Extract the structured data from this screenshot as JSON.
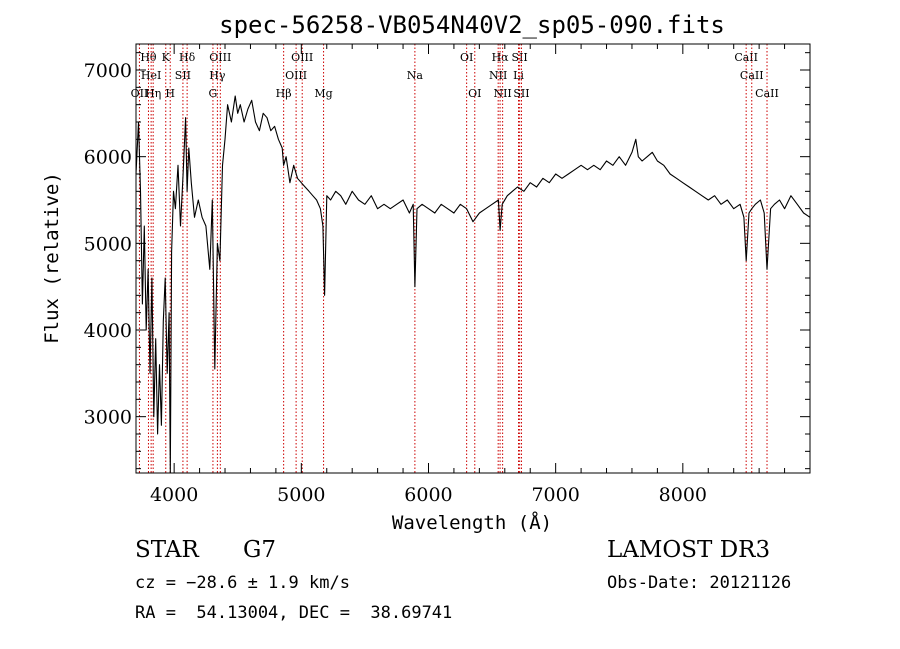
{
  "chart_data": {
    "type": "line",
    "title": "spec-56258-VB054N40V2_sp05-090.fits",
    "xlabel": "Wavelength (Å)",
    "ylabel": "Flux (relative)",
    "xlim": [
      3700,
      9000
    ],
    "ylim": [
      2350,
      7300
    ],
    "x_ticks": [
      4000,
      5000,
      6000,
      7000,
      8000
    ],
    "y_ticks": [
      3000,
      4000,
      5000,
      6000,
      7000
    ],
    "line_color": "#000000",
    "marker_color": "#cc0000",
    "series": [
      {
        "x": [
          3700,
          3720,
          3735,
          3750,
          3765,
          3780,
          3795,
          3810,
          3825,
          3840,
          3855,
          3870,
          3885,
          3900,
          3915,
          3930,
          3945,
          3960,
          3970,
          3980,
          3995,
          4010,
          4030,
          4050,
          4070,
          4090,
          4102,
          4115,
          4135,
          4160,
          4190,
          4220,
          4250,
          4280,
          4300,
          4320,
          4340,
          4360,
          4380,
          4400,
          4420,
          4450,
          4480,
          4500,
          4520,
          4550,
          4580,
          4610,
          4640,
          4670,
          4700,
          4730,
          4760,
          4790,
          4820,
          4850,
          4861,
          4880,
          4910,
          4940,
          4970,
          5000,
          5030,
          5060,
          5090,
          5120,
          5150,
          5170,
          5183,
          5200,
          5230,
          5270,
          5310,
          5350,
          5400,
          5450,
          5500,
          5550,
          5600,
          5650,
          5700,
          5750,
          5800,
          5850,
          5880,
          5893,
          5910,
          5950,
          6000,
          6050,
          6100,
          6150,
          6200,
          6250,
          6300,
          6350,
          6400,
          6450,
          6500,
          6550,
          6563,
          6580,
          6620,
          6660,
          6700,
          6750,
          6800,
          6850,
          6900,
          6950,
          7000,
          7050,
          7100,
          7150,
          7200,
          7250,
          7300,
          7350,
          7400,
          7450,
          7500,
          7550,
          7600,
          7630,
          7650,
          7680,
          7720,
          7760,
          7800,
          7850,
          7900,
          7950,
          8000,
          8050,
          8100,
          8150,
          8200,
          8250,
          8300,
          8350,
          8400,
          8450,
          8480,
          8498,
          8520,
          8542,
          8570,
          8610,
          8640,
          8662,
          8690,
          8720,
          8760,
          8800,
          8850,
          8900,
          8950,
          9000
        ],
        "y": [
          5800,
          6400,
          5600,
          4300,
          5200,
          4000,
          4700,
          3500,
          4600,
          3000,
          3900,
          2800,
          3600,
          2900,
          4100,
          4600,
          3500,
          4200,
          2350,
          4900,
          5600,
          5400,
          5900,
          5200,
          5800,
          6450,
          5600,
          6100,
          5700,
          5300,
          5500,
          5300,
          5200,
          4700,
          5500,
          3550,
          5000,
          4800,
          5900,
          6200,
          6600,
          6400,
          6700,
          6500,
          6600,
          6400,
          6550,
          6650,
          6400,
          6300,
          6500,
          6450,
          6300,
          6350,
          6200,
          6100,
          5900,
          6000,
          5700,
          5900,
          5750,
          5700,
          5650,
          5600,
          5550,
          5500,
          5400,
          5200,
          4400,
          5550,
          5500,
          5600,
          5550,
          5450,
          5600,
          5500,
          5450,
          5550,
          5400,
          5450,
          5400,
          5450,
          5500,
          5350,
          5450,
          4500,
          5400,
          5450,
          5400,
          5350,
          5450,
          5400,
          5350,
          5450,
          5400,
          5250,
          5350,
          5400,
          5450,
          5500,
          5150,
          5450,
          5550,
          5600,
          5650,
          5600,
          5700,
          5650,
          5750,
          5700,
          5800,
          5750,
          5800,
          5850,
          5900,
          5850,
          5900,
          5850,
          5950,
          5900,
          6000,
          5900,
          6050,
          6200,
          6000,
          5950,
          6000,
          6050,
          5950,
          5900,
          5800,
          5750,
          5700,
          5650,
          5600,
          5550,
          5500,
          5550,
          5450,
          5500,
          5400,
          5450,
          5300,
          4800,
          5350,
          5400,
          5450,
          5500,
          5350,
          4700,
          5400,
          5450,
          5500,
          5400,
          5550,
          5450,
          5350,
          5300
        ]
      }
    ],
    "line_markers": [
      {
        "label": "Hθ",
        "x": 3798,
        "row": 0
      },
      {
        "label": "OII",
        "x": 3727,
        "row": 2
      },
      {
        "label": "HeI",
        "x": 3819,
        "row": 1
      },
      {
        "label": "Hη",
        "x": 3835,
        "row": 2
      },
      {
        "label": "K",
        "x": 3934,
        "row": 0
      },
      {
        "label": "SII",
        "x": 4069,
        "row": 1
      },
      {
        "label": "H",
        "x": 3969,
        "row": 2
      },
      {
        "label": "Hδ",
        "x": 4102,
        "row": 0
      },
      {
        "label": "OIII",
        "x": 4363,
        "row": 0
      },
      {
        "label": "Hγ",
        "x": 4340,
        "row": 1
      },
      {
        "label": "G",
        "x": 4305,
        "row": 2
      },
      {
        "label": "OIII",
        "x": 5007,
        "row": 0
      },
      {
        "label": "OIII",
        "x": 4959,
        "row": 1
      },
      {
        "label": "Hβ",
        "x": 4861,
        "row": 2
      },
      {
        "label": "Mg",
        "x": 5175,
        "row": 2
      },
      {
        "label": "Na",
        "x": 5893,
        "row": 1
      },
      {
        "label": "OI",
        "x": 6300,
        "row": 0
      },
      {
        "label": "OI",
        "x": 6364,
        "row": 2
      },
      {
        "label": "Hα",
        "x": 6563,
        "row": 0
      },
      {
        "label": "NII",
        "x": 6548,
        "row": 1
      },
      {
        "label": "NII",
        "x": 6583,
        "row": 2
      },
      {
        "label": "SII",
        "x": 6717,
        "row": 0
      },
      {
        "label": "Li",
        "x": 6708,
        "row": 1
      },
      {
        "label": "SII",
        "x": 6731,
        "row": 2
      },
      {
        "label": "CaII",
        "x": 8498,
        "row": 0
      },
      {
        "label": "CaII",
        "x": 8542,
        "row": 1
      },
      {
        "label": "CaII",
        "x": 8662,
        "row": 2
      }
    ]
  },
  "info": {
    "object_class": "STAR",
    "subclass": "G7",
    "survey": "LAMOST DR3",
    "redshift": "cz = −28.6 ± 1.9 km/s",
    "obs_date": "Obs-Date: 20121126",
    "coords": "RA =  54.13004, DEC =  38.69741"
  }
}
